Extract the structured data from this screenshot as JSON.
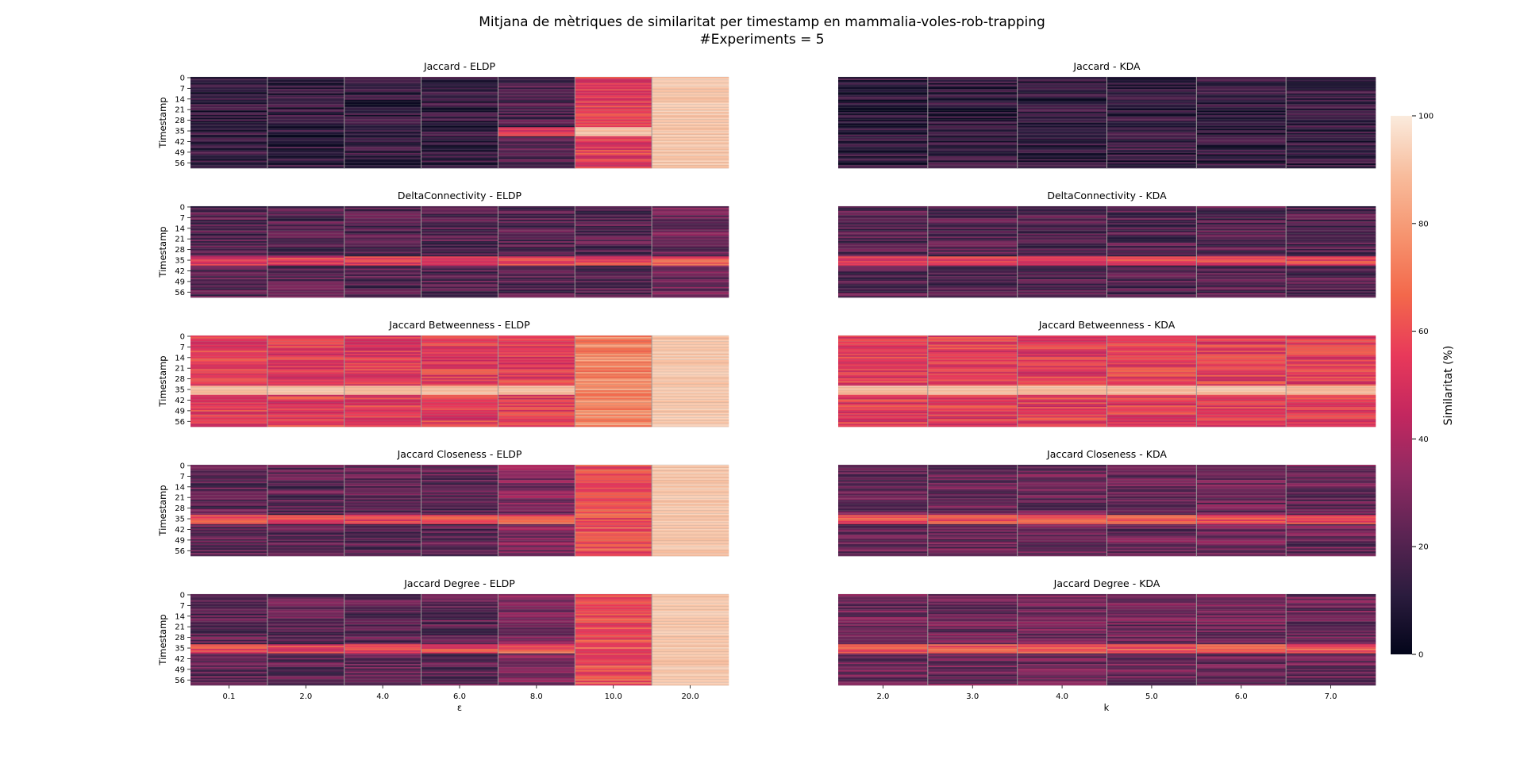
{
  "figure": {
    "title_line1": "Mitjana de mètriques de similaritat per timestamp en mammalia-voles-rob-trapping",
    "title_line2": "#Experiments = 5"
  },
  "colorbar": {
    "label": "Similaritat (%)",
    "ticks": [
      0,
      20,
      40,
      60,
      80,
      100
    ],
    "range": [
      0,
      100
    ],
    "colormap": "rocket",
    "colors": [
      "#03051a",
      "#2b1c3e",
      "#5b2453",
      "#8f2a62",
      "#c3275f",
      "#e8395a",
      "#f3684b",
      "#f6946f",
      "#f8bc9c",
      "#faebdd"
    ]
  },
  "axes": {
    "timestamp_label": "Timestamp",
    "timestamp_ticks": [
      "0",
      "7",
      "14",
      "21",
      "28",
      "35",
      "42",
      "49",
      "56"
    ],
    "eldp_xlabel": "ε",
    "eldp_xticks": [
      "0.1",
      "2.0",
      "4.0",
      "6.0",
      "8.0",
      "10.0",
      "20.0"
    ],
    "kda_xlabel": "k",
    "kda_xticks": [
      "2.0",
      "3.0",
      "4.0",
      "5.0",
      "6.0",
      "7.0"
    ]
  },
  "chart_data": [
    {
      "type": "heatmap",
      "title": "Jaccard - ELDP",
      "x": [
        "0.1",
        "2.0",
        "4.0",
        "6.0",
        "8.0",
        "10.0",
        "20.0"
      ],
      "rows": 60,
      "ylabel": "Timestamp",
      "column_mean_similarity": [
        12,
        12,
        12,
        12,
        18,
        55,
        92
      ]
    },
    {
      "type": "heatmap",
      "title": "Jaccard - KDA",
      "x": [
        "2.0",
        "3.0",
        "4.0",
        "5.0",
        "6.0",
        "7.0"
      ],
      "rows": 60,
      "column_mean_similarity": [
        12,
        12,
        12,
        12,
        12,
        12
      ]
    },
    {
      "type": "heatmap",
      "title": "DeltaConnectivity - ELDP",
      "x": [
        "0.1",
        "2.0",
        "4.0",
        "6.0",
        "8.0",
        "10.0",
        "20.0"
      ],
      "rows": 60,
      "ylabel": "Timestamp",
      "column_mean_similarity": [
        20,
        20,
        20,
        20,
        20,
        20,
        26
      ]
    },
    {
      "type": "heatmap",
      "title": "DeltaConnectivity - KDA",
      "x": [
        "2.0",
        "3.0",
        "4.0",
        "5.0",
        "6.0",
        "7.0"
      ],
      "rows": 60,
      "column_mean_similarity": [
        20,
        20,
        20,
        20,
        20,
        20
      ]
    },
    {
      "type": "heatmap",
      "title": "Jaccard Betweenness - ELDP",
      "x": [
        "0.1",
        "2.0",
        "4.0",
        "6.0",
        "8.0",
        "10.0",
        "20.0"
      ],
      "rows": 60,
      "ylabel": "Timestamp",
      "column_mean_similarity": [
        55,
        55,
        55,
        55,
        55,
        75,
        92
      ]
    },
    {
      "type": "heatmap",
      "title": "Jaccard Betweenness - KDA",
      "x": [
        "2.0",
        "3.0",
        "4.0",
        "5.0",
        "6.0",
        "7.0"
      ],
      "rows": 60,
      "column_mean_similarity": [
        55,
        55,
        55,
        55,
        55,
        55
      ]
    },
    {
      "type": "heatmap",
      "title": "Jaccard Closeness - ELDP",
      "x": [
        "0.1",
        "2.0",
        "4.0",
        "6.0",
        "8.0",
        "10.0",
        "20.0"
      ],
      "rows": 60,
      "ylabel": "Timestamp",
      "column_mean_similarity": [
        22,
        22,
        22,
        22,
        30,
        60,
        92
      ]
    },
    {
      "type": "heatmap",
      "title": "Jaccard Closeness - KDA",
      "x": [
        "2.0",
        "3.0",
        "4.0",
        "5.0",
        "6.0",
        "7.0"
      ],
      "rows": 60,
      "column_mean_similarity": [
        25,
        25,
        25,
        25,
        25,
        25
      ]
    },
    {
      "type": "heatmap",
      "title": "Jaccard Degree - ELDP",
      "x": [
        "0.1",
        "2.0",
        "4.0",
        "6.0",
        "8.0",
        "10.0",
        "20.0"
      ],
      "rows": 60,
      "ylabel": "Timestamp",
      "column_mean_similarity": [
        22,
        22,
        22,
        22,
        30,
        60,
        92
      ]
    },
    {
      "type": "heatmap",
      "title": "Jaccard Degree - KDA",
      "x": [
        "2.0",
        "3.0",
        "4.0",
        "5.0",
        "6.0",
        "7.0"
      ],
      "rows": 60,
      "column_mean_similarity": [
        26,
        26,
        26,
        26,
        26,
        26
      ]
    }
  ]
}
